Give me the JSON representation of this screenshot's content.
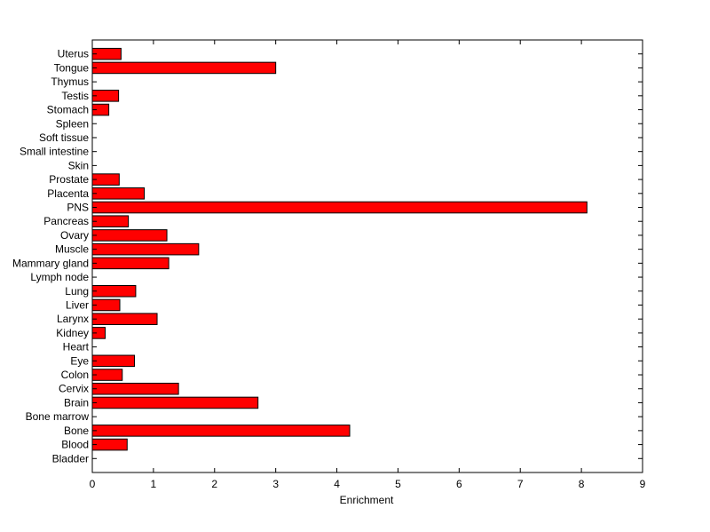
{
  "chart_data": {
    "type": "bar",
    "orientation": "horizontal",
    "categories": [
      "Bladder",
      "Blood",
      "Bone",
      "Bone marrow",
      "Brain",
      "Cervix",
      "Colon",
      "Eye",
      "Heart",
      "Kidney",
      "Larynx",
      "Liver",
      "Lung",
      "Lymph node",
      "Mammary gland",
      "Muscle",
      "Ovary",
      "Pancreas",
      "PNS",
      "Placenta",
      "Prostate",
      "Skin",
      "Small intestine",
      "Soft tissue",
      "Spleen",
      "Stomach",
      "Testis",
      "Thymus",
      "Tongue",
      "Uterus"
    ],
    "values": [
      0,
      0.57,
      4.21,
      0,
      2.71,
      1.41,
      0.49,
      0.69,
      0,
      0.21,
      1.06,
      0.45,
      0.71,
      0,
      1.25,
      1.74,
      1.22,
      0.59,
      8.09,
      0.85,
      0.44,
      0,
      0,
      0,
      0,
      0.27,
      0.43,
      0,
      3.0,
      0.47
    ],
    "title": "",
    "xlabel": "Enrichment",
    "ylabel": "",
    "xlim": [
      0,
      9
    ],
    "xticks": [
      0,
      1,
      2,
      3,
      4,
      5,
      6,
      7,
      8,
      9
    ],
    "grid": false,
    "legend": "none",
    "bar_color": "#ff0000",
    "bar_edge_color": "#000000"
  }
}
